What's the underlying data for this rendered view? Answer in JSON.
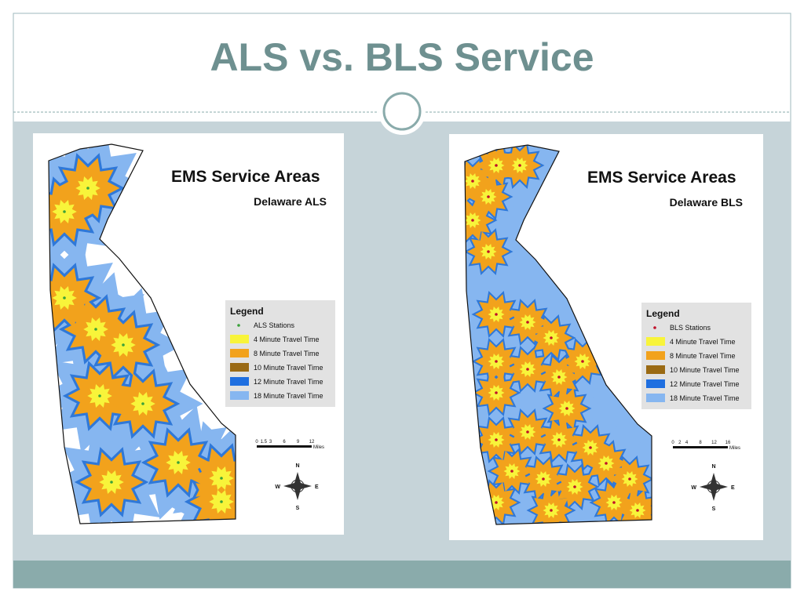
{
  "header": {
    "title": "ALS vs. BLS Service"
  },
  "maps": [
    {
      "title": "EMS Service Areas",
      "subtitle": "Delaware ALS",
      "legend": {
        "title": "Legend",
        "items": [
          "ALS Stations",
          "4 Minute Travel Time",
          "8 Minute Travel Time",
          "10 Minute Travel Time",
          "12 Minute Travel Time",
          "18 Minute Travel Time"
        ]
      },
      "scale": {
        "ticks": [
          "0",
          "1.5",
          "3",
          "6",
          "9",
          "12"
        ],
        "unit": "Miles"
      },
      "compass": [
        "N",
        "E",
        "S",
        "W"
      ]
    },
    {
      "title": "EMS Service Areas",
      "subtitle": "Delaware BLS",
      "legend": {
        "title": "Legend",
        "items": [
          "BLS Stations",
          "4 Minute Travel Time",
          "8 Minute Travel Time",
          "10 Minute Travel Time",
          "12 Minute Travel Time",
          "18 Minute Travel Time"
        ]
      },
      "scale": {
        "ticks": [
          "0",
          "2",
          "4",
          "8",
          "12",
          "16"
        ],
        "unit": "Miles"
      },
      "compass": [
        "N",
        "E",
        "S",
        "W"
      ]
    }
  ]
}
